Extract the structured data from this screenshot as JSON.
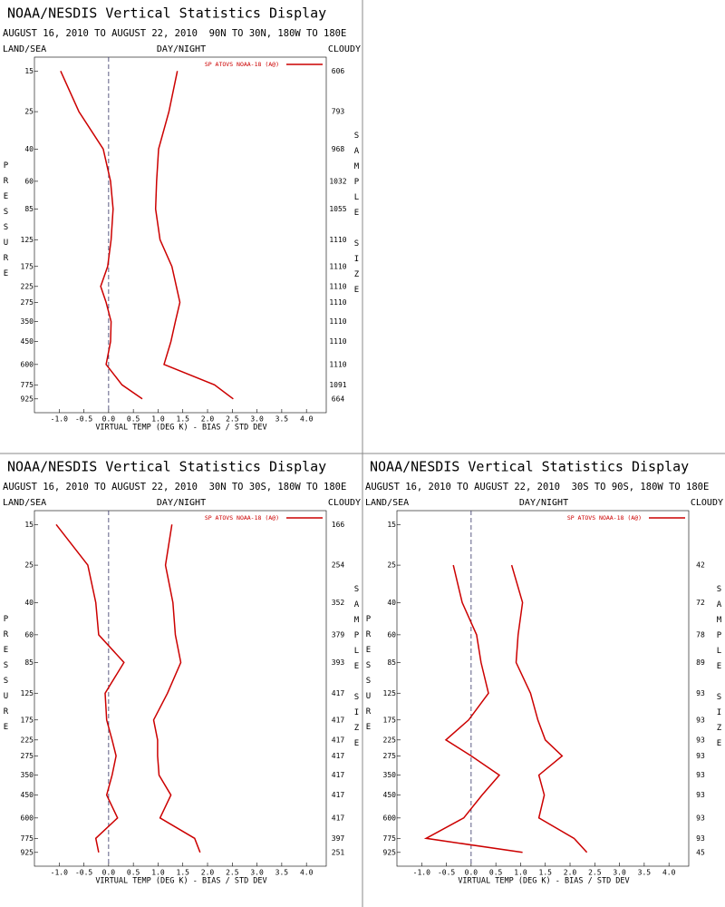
{
  "chart_data": [
    {
      "type": "line",
      "title": "NOAA/NESDIS Vertical Statistics Display",
      "subtitle": "AUGUST 16, 2010 TO AUGUST 22, 2010  90N TO 30N, 180W TO 180E",
      "left_label": "LAND/SEA",
      "center_label": "DAY/NIGHT",
      "right_label": "CLOUDY",
      "legend": "SP ATOVS NOAA-18 (A@)",
      "y_label": "PRESSURE",
      "y2_label": "SAMPLE SIZE",
      "x_label": "VIRTUAL TEMP (DEG K) - BIAS / STD DEV",
      "log_y": true,
      "ylim": [
        12.6,
        1100
      ],
      "xlim": [
        -1.5,
        4.4
      ],
      "yticks": [
        15,
        25,
        40,
        60,
        85,
        125,
        175,
        225,
        275,
        350,
        450,
        600,
        775,
        925
      ],
      "xticks": [
        {
          "value": -1.0,
          "label": "-1.0"
        },
        {
          "value": -0.5,
          "label": "-0.5"
        },
        {
          "value": 0.0,
          "label": "0.0"
        },
        {
          "value": 0.5,
          "label": "0.5"
        },
        {
          "value": 1.0,
          "label": "1.0"
        },
        {
          "value": 1.5,
          "label": "1.5"
        },
        {
          "value": 2.0,
          "label": "2.0"
        },
        {
          "value": 2.5,
          "label": "2.5"
        },
        {
          "value": 3.0,
          "label": "3.0"
        },
        {
          "value": 3.5,
          "label": "3.5"
        },
        {
          "value": 4.0,
          "label": "4.0"
        }
      ],
      "sample_size": [
        606,
        793,
        968,
        1032,
        1055,
        1110,
        1110,
        1110,
        1110,
        1110,
        1110,
        1110,
        1091,
        664
      ],
      "series": [
        {
          "color": "#cc0000",
          "values": [
            -0.97,
            -0.6,
            -0.11,
            0.04,
            0.09,
            0.05,
            -0.02,
            -0.16,
            -0.05,
            0.05,
            0.04,
            -0.05,
            0.27,
            0.68
          ]
        },
        {
          "color": "#cc0000",
          "values": [
            1.39,
            1.22,
            1.01,
            0.97,
            0.95,
            1.04,
            1.28,
            1.37,
            1.44,
            1.35,
            1.26,
            1.12,
            2.14,
            2.52
          ]
        }
      ]
    },
    {
      "type": "line",
      "title": "NOAA/NESDIS Vertical Statistics Display",
      "subtitle": "AUGUST 16, 2010 TO AUGUST 22, 2010  30N TO 30S, 180W TO 180E",
      "left_label": "LAND/SEA",
      "center_label": "DAY/NIGHT",
      "right_label": "CLOUDY",
      "legend": "SP ATOVS NOAA-18 (A@)",
      "y_label": "PRESSURE",
      "y2_label": "SAMPLE SIZE",
      "x_label": "VIRTUAL TEMP (DEG K) - BIAS / STD DEV",
      "log_y": true,
      "ylim": [
        12.6,
        1100
      ],
      "xlim": [
        -1.5,
        4.4
      ],
      "yticks": [
        15,
        25,
        40,
        60,
        85,
        125,
        175,
        225,
        275,
        350,
        450,
        600,
        775,
        925
      ],
      "xticks": [
        {
          "value": -1.0,
          "label": "-1.0"
        },
        {
          "value": -0.5,
          "label": "-0.5"
        },
        {
          "value": 0.0,
          "label": "0.0"
        },
        {
          "value": 0.5,
          "label": "0.5"
        },
        {
          "value": 1.0,
          "label": "1.0"
        },
        {
          "value": 1.5,
          "label": "1.5"
        },
        {
          "value": 2.0,
          "label": "2.0"
        },
        {
          "value": 2.5,
          "label": "2.5"
        },
        {
          "value": 3.0,
          "label": "3.0"
        },
        {
          "value": 3.5,
          "label": "3.5"
        },
        {
          "value": 4.0,
          "label": "4.0"
        }
      ],
      "sample_size": [
        166,
        254,
        352,
        379,
        393,
        417,
        417,
        417,
        417,
        417,
        417,
        417,
        397,
        251
      ],
      "series": [
        {
          "color": "#cc0000",
          "values": [
            -1.06,
            -0.42,
            -0.26,
            -0.2,
            0.31,
            -0.07,
            -0.04,
            0.07,
            0.15,
            0.07,
            -0.04,
            0.18,
            -0.26,
            -0.2
          ]
        },
        {
          "color": "#cc0000",
          "values": [
            1.28,
            1.15,
            1.3,
            1.35,
            1.46,
            1.19,
            0.91,
            0.99,
            0.99,
            1.02,
            1.26,
            1.04,
            1.74,
            1.85
          ]
        }
      ]
    },
    {
      "type": "line",
      "title": "NOAA/NESDIS Vertical Statistics Display",
      "subtitle": "AUGUST 16, 2010 TO AUGUST 22, 2010  30S TO 90S, 180W TO 180E",
      "left_label": "LAND/SEA",
      "center_label": "DAY/NIGHT",
      "right_label": "CLOUDY",
      "legend": "SP ATOVS NOAA-18 (A@)",
      "y_label": "PRESSURE",
      "y2_label": "SAMPLE SIZE",
      "x_label": "VIRTUAL TEMP (DEG K) - BIAS / STD DEV",
      "log_y": true,
      "ylim": [
        12.6,
        1100
      ],
      "xlim": [
        -1.5,
        4.4
      ],
      "yticks": [
        15,
        25,
        40,
        60,
        85,
        125,
        175,
        225,
        275,
        350,
        450,
        600,
        775,
        925
      ],
      "xticks": [
        {
          "value": -1.0,
          "label": "-1.0"
        },
        {
          "value": -0.5,
          "label": "-0.5"
        },
        {
          "value": 0.0,
          "label": "0.0"
        },
        {
          "value": 0.5,
          "label": "0.5"
        },
        {
          "value": 1.0,
          "label": "1.0"
        },
        {
          "value": 1.5,
          "label": "1.5"
        },
        {
          "value": 2.0,
          "label": "2.0"
        },
        {
          "value": 2.5,
          "label": "2.5"
        },
        {
          "value": 3.0,
          "label": "3.0"
        },
        {
          "value": 3.5,
          "label": "3.5"
        },
        {
          "value": 4.0,
          "label": "4.0"
        }
      ],
      "sample_size": [
        null,
        42,
        72,
        78,
        89,
        93,
        93,
        93,
        93,
        93,
        93,
        93,
        93,
        45
      ],
      "series": [
        {
          "color": "#cc0000",
          "values": [
            null,
            -0.36,
            -0.18,
            0.11,
            0.2,
            0.35,
            -0.05,
            -0.51,
            0.0,
            0.57,
            0.22,
            -0.15,
            -0.91,
            1.04
          ]
        },
        {
          "color": "#cc0000",
          "values": [
            null,
            0.82,
            1.04,
            0.95,
            0.91,
            1.2,
            1.35,
            1.5,
            1.84,
            1.37,
            1.48,
            1.37,
            2.08,
            2.34
          ]
        }
      ]
    }
  ]
}
